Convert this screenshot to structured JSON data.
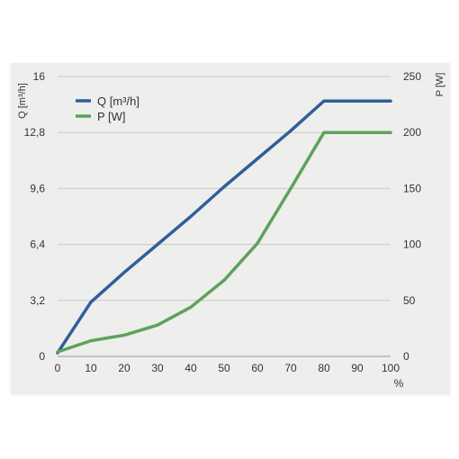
{
  "chart_data": {
    "type": "line",
    "x": [
      0,
      10,
      20,
      30,
      40,
      50,
      60,
      70,
      80,
      90,
      100
    ],
    "x_ticks": [
      "0",
      "10",
      "20",
      "30",
      "40",
      "50",
      "60",
      "70",
      "80",
      "90",
      "100"
    ],
    "x_unit": "%",
    "y_left": {
      "label": "Q [m³/h]",
      "range": [
        0,
        16
      ],
      "ticks": [
        "0",
        "3,2",
        "6,4",
        "9,6",
        "12,8",
        "16"
      ],
      "tick_values": [
        0,
        3.2,
        6.4,
        9.6,
        12.8,
        16
      ]
    },
    "y_right": {
      "label": "P [W]",
      "range": [
        0,
        250
      ],
      "ticks": [
        "0",
        "50",
        "100",
        "150",
        "200",
        "250"
      ],
      "tick_values": [
        0,
        50,
        100,
        150,
        200,
        250
      ]
    },
    "series": [
      {
        "name": "Q [m³/h]",
        "axis": "left",
        "color": "#2f5f9b",
        "x": [
          0,
          10,
          20,
          30,
          40,
          50,
          60,
          70,
          80,
          90,
          100
        ],
        "values": [
          0.2,
          3.1,
          4.8,
          6.4,
          8.0,
          9.7,
          11.3,
          12.9,
          14.6,
          14.6,
          14.6
        ]
      },
      {
        "name": "P [W]",
        "axis": "right",
        "color": "#5fa15c",
        "x": [
          0,
          10,
          20,
          30,
          40,
          50,
          60,
          70,
          80,
          90,
          100
        ],
        "values": [
          4,
          14,
          19,
          28,
          44,
          68,
          101,
          150,
          200,
          200,
          200
        ]
      }
    ],
    "grid": "horizontal",
    "legend_position": "top-left"
  }
}
